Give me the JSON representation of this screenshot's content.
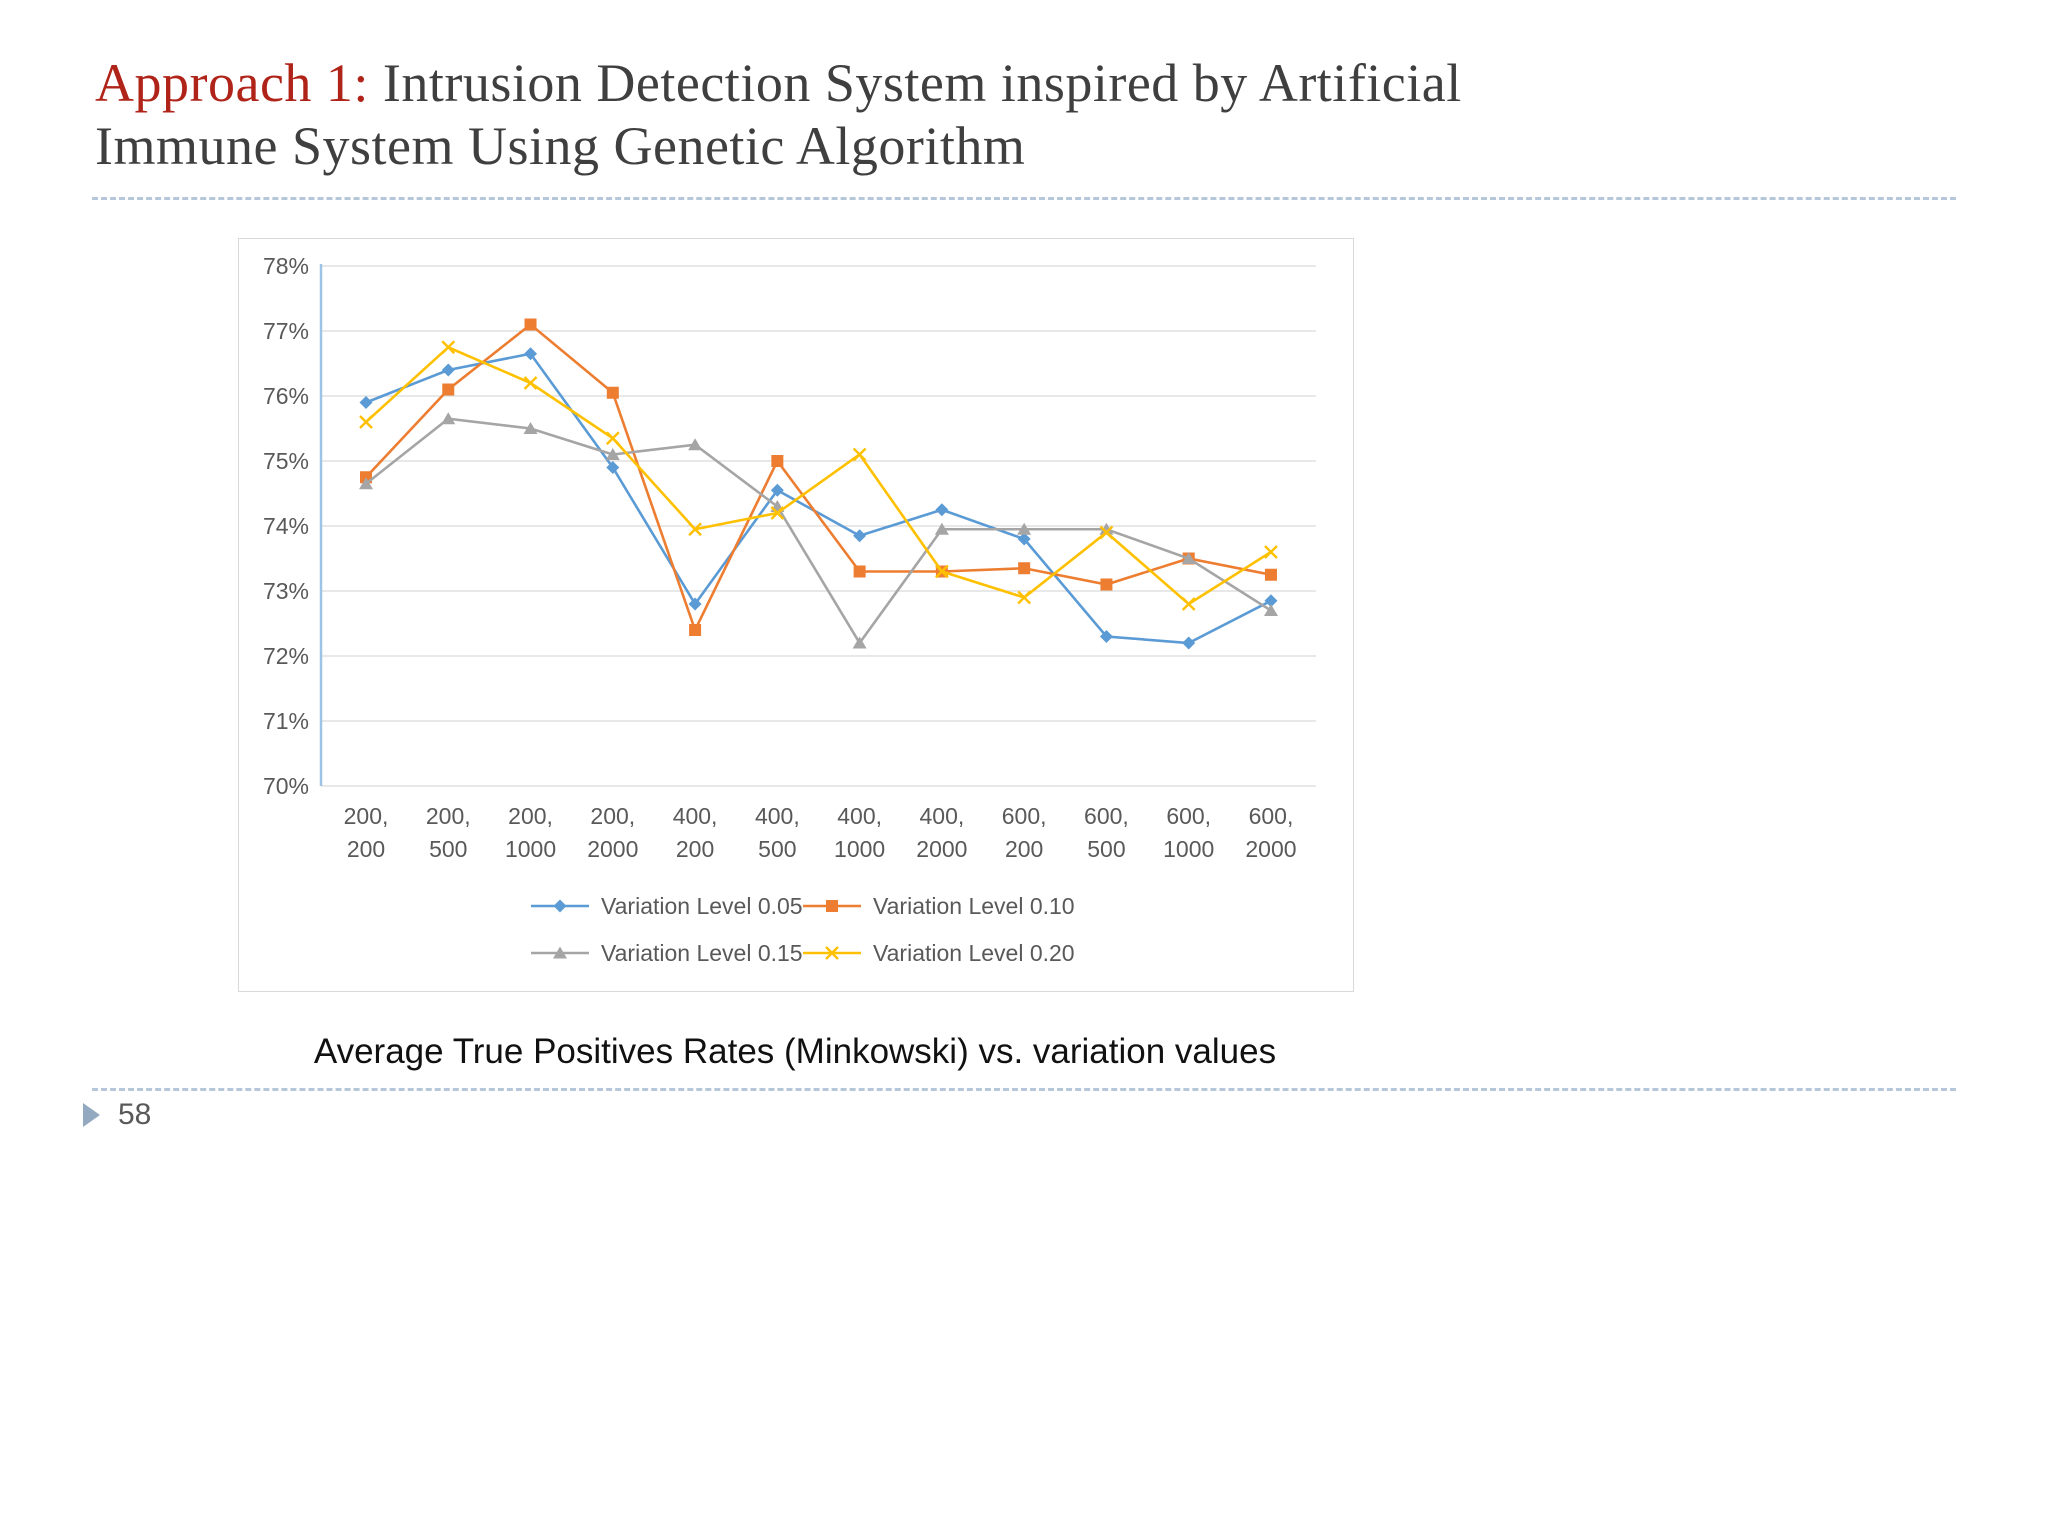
{
  "slide": {
    "title": {
      "highlight": "Approach 1:",
      "rest": " Intrusion Detection System inspired by Artificial Immune System Using Genetic Algorithm"
    },
    "caption": "Average True Positives Rates (Minkowski) vs. variation values",
    "page_number": "58"
  },
  "colors": {
    "title_highlight": "#b02318",
    "title_text": "#3f3f3f",
    "gridline": "#d9d9d9",
    "axis_line": "#9dc3e6",
    "tick_text": "#595959",
    "dashed_rule": "#b5c7d8"
  },
  "chart_data": {
    "type": "line",
    "title": "",
    "xlabel": "",
    "ylabel": "",
    "ylim": [
      70,
      78
    ],
    "grid": true,
    "legend_position": "bottom",
    "ytick_labels": [
      "70%",
      "71%",
      "72%",
      "73%",
      "74%",
      "75%",
      "76%",
      "77%",
      "78%"
    ],
    "categories": [
      "200, 200",
      "200, 500",
      "200, 1000",
      "200, 2000",
      "400, 200",
      "400, 500",
      "400, 1000",
      "400, 2000",
      "600, 200",
      "600, 500",
      "600, 1000",
      "600, 2000"
    ],
    "series": [
      {
        "name": "Variation Level 0.05",
        "color": "#5b9bd5",
        "marker": "diamond",
        "values": [
          75.9,
          76.4,
          76.65,
          74.9,
          72.8,
          74.55,
          73.85,
          74.25,
          73.8,
          72.3,
          72.2,
          72.85
        ]
      },
      {
        "name": "Variation Level 0.10",
        "color": "#ed7d31",
        "marker": "square",
        "values": [
          74.75,
          76.1,
          77.1,
          76.05,
          72.4,
          75.0,
          73.3,
          73.3,
          73.35,
          73.1,
          73.5,
          73.25
        ]
      },
      {
        "name": "Variation Level 0.15",
        "color": "#a5a5a5",
        "marker": "triangle",
        "values": [
          74.65,
          75.65,
          75.5,
          75.1,
          75.25,
          74.3,
          72.2,
          73.95,
          73.95,
          73.95,
          73.5,
          72.7
        ]
      },
      {
        "name": "Variation Level 0.20",
        "color": "#ffc000",
        "marker": "x",
        "values": [
          75.6,
          76.75,
          76.2,
          75.35,
          73.95,
          74.2,
          75.1,
          73.3,
          72.9,
          73.9,
          72.8,
          73.6
        ]
      }
    ]
  }
}
